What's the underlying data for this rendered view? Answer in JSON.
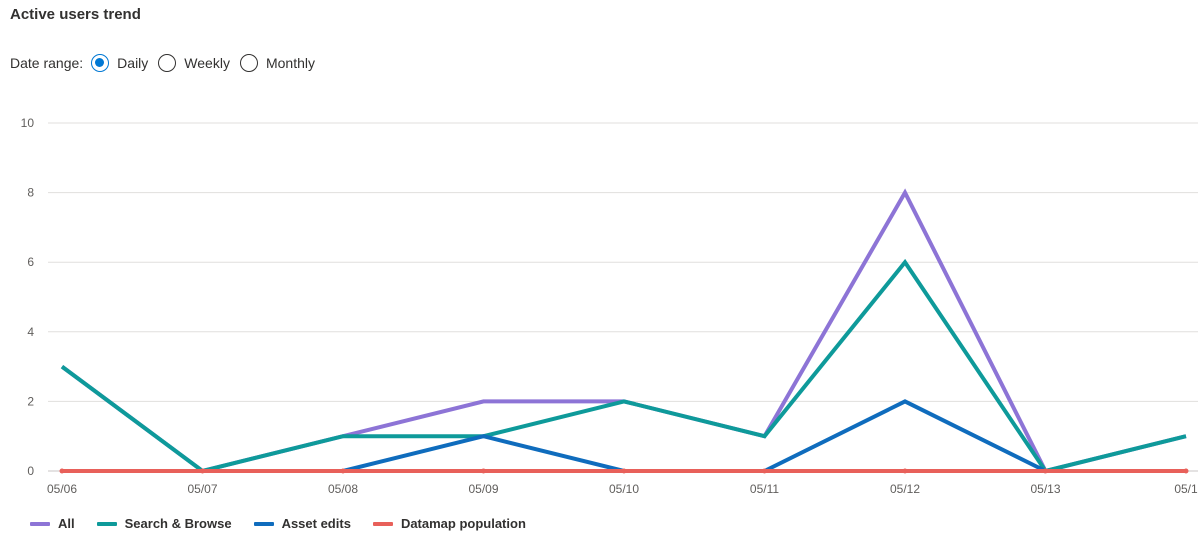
{
  "title": "Active users trend",
  "date_range": {
    "label": "Date range:",
    "options": [
      "Daily",
      "Weekly",
      "Monthly"
    ],
    "selected": "Daily"
  },
  "chart_data": {
    "type": "line",
    "title": "Active users trend",
    "xlabel": "",
    "ylabel": "",
    "categories": [
      "05/06",
      "05/07",
      "05/08",
      "05/09",
      "05/10",
      "05/11",
      "05/12",
      "05/13",
      "05/1"
    ],
    "yticks": [
      0,
      2,
      4,
      6,
      8,
      10
    ],
    "ylim": [
      0,
      10
    ],
    "grid": true,
    "legend_position": "bottom-left",
    "series": [
      {
        "name": "All",
        "color": "#8d74d6",
        "values": [
          3,
          0,
          1,
          2,
          2,
          1,
          8,
          0,
          1
        ]
      },
      {
        "name": "Search & Browse",
        "color": "#0e9a9a",
        "values": [
          3,
          0,
          1,
          1,
          2,
          1,
          6,
          0,
          1
        ]
      },
      {
        "name": "Asset edits",
        "color": "#0f6cbd",
        "values": [
          0,
          0,
          0,
          1,
          0,
          0,
          2,
          0,
          0
        ]
      },
      {
        "name": "Datamap population",
        "color": "#e8605a",
        "values": [
          0,
          0,
          0,
          0,
          0,
          0,
          0,
          0,
          0
        ]
      }
    ]
  }
}
